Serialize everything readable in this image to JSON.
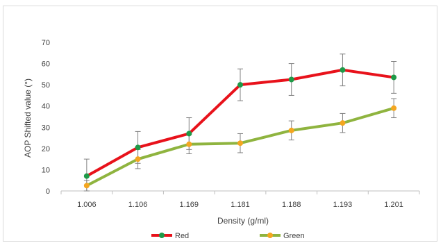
{
  "chart_data": {
    "type": "line",
    "title": "",
    "xlabel": "Density (g/ml)",
    "ylabel": "AOP Shifted value (°)",
    "categories": [
      "1.006",
      "1.106",
      "1.169",
      "1.181",
      "1.188",
      "1.193",
      "1.201"
    ],
    "ylim": [
      0,
      70
    ],
    "yticks": [
      0,
      10,
      20,
      30,
      40,
      50,
      60,
      70
    ],
    "grid": false,
    "legend": "bottom",
    "series": [
      {
        "name": "Red",
        "line_color": "#e8121b",
        "marker_color": "#1e9a48",
        "values": [
          7,
          20.5,
          27,
          50,
          52.5,
          57,
          53.5
        ],
        "error": [
          8,
          7.5,
          7.5,
          7.5,
          7.5,
          7.5,
          7.5
        ]
      },
      {
        "name": "Green",
        "line_color": "#8fb43f",
        "marker_color": "#f4a620",
        "values": [
          2.5,
          15,
          22,
          22.5,
          28.5,
          32,
          39
        ],
        "error": [
          2.5,
          4.5,
          4.5,
          4.5,
          4.5,
          4.5,
          4.5
        ]
      }
    ]
  }
}
